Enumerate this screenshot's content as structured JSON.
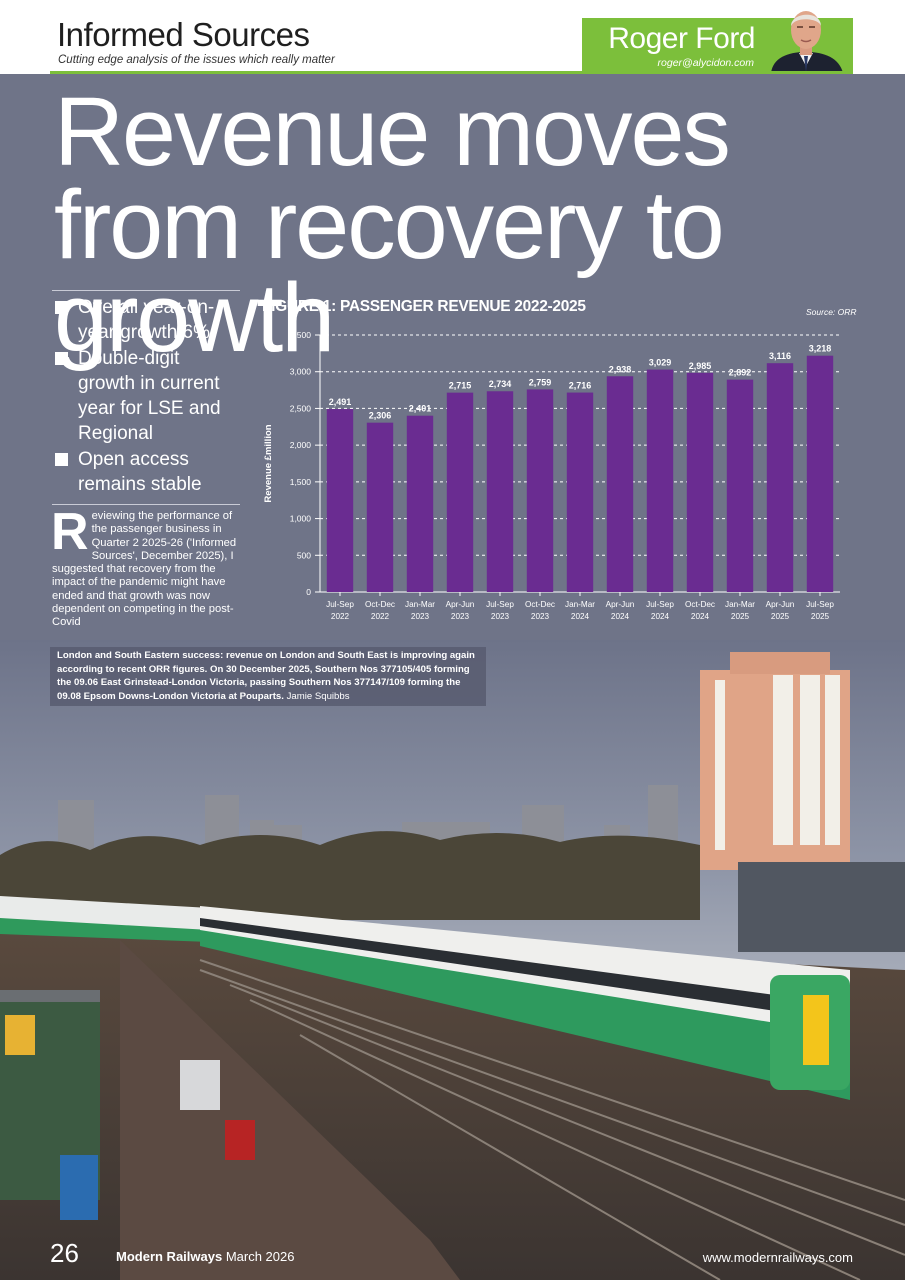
{
  "header": {
    "section_title": "Informed Sources",
    "tagline": "Cutting edge analysis of the issues which really matter",
    "author_name": "Roger Ford",
    "author_email": "roger@alycidon.com"
  },
  "headline": "Revenue moves from recovery to growth",
  "bullets": [
    "Overall year-on-year growth 6%",
    "Double-digit growth in current year for LSE and Regional",
    "Open access remains stable"
  ],
  "body": {
    "drop_cap": "R",
    "text": "eviewing the performance of the passenger business in Quarter 2 2025-26 ('Informed Sources', December 2025), I suggested that recovery from the impact of the pandemic might have ended and that growth was now dependent on competing in the post-Covid"
  },
  "figure": {
    "title": "FIGURE 1: PASSENGER REVENUE 2022-2025",
    "source": "Source: ORR"
  },
  "chart_data": {
    "type": "bar",
    "categories": [
      [
        "Jul-Sep",
        "2022"
      ],
      [
        "Oct-Dec",
        "2022"
      ],
      [
        "Jan-Mar",
        "2023"
      ],
      [
        "Apr-Jun",
        "2023"
      ],
      [
        "Jul-Sep",
        "2023"
      ],
      [
        "Oct-Dec",
        "2023"
      ],
      [
        "Jan-Mar",
        "2024"
      ],
      [
        "Apr-Jun",
        "2024"
      ],
      [
        "Jul-Sep",
        "2024"
      ],
      [
        "Oct-Dec",
        "2024"
      ],
      [
        "Jan-Mar",
        "2025"
      ],
      [
        "Apr-Jun",
        "2025"
      ],
      [
        "Jul-Sep",
        "2025"
      ]
    ],
    "values": [
      2491,
      2306,
      2401,
      2715,
      2734,
      2759,
      2716,
      2938,
      3029,
      2985,
      2892,
      3116,
      3218
    ],
    "value_labels": [
      "2,491",
      "2,306",
      "2,401",
      "2,715",
      "2,734",
      "2,759",
      "2,716",
      "2,938",
      "3,029",
      "2,985",
      "2,892",
      "3,116",
      "3,218"
    ],
    "ylabel": "Revenue £million",
    "ylim": [
      0,
      3500
    ],
    "yticks": [
      0,
      500,
      1000,
      1500,
      2000,
      2500,
      3000,
      3500
    ],
    "ytick_labels": [
      "0",
      "500",
      "1,000",
      "1,500",
      "2,000",
      "2,500",
      "3,000",
      "3,500"
    ],
    "grid": "dashed horizontal",
    "bar_color": "#6a2c91"
  },
  "photo": {
    "caption": "London and South Eastern success: revenue on London and South East is improving again according to recent ORR figures. On 30 December 2025, Southern Nos 377105/405 forming the 09.06 East Grinstead-London Victoria, passing Southern Nos 377147/109 forming the 09.08 Epsom Downs-London Victoria at Pouparts.",
    "credit": "Jamie Squibbs"
  },
  "footer": {
    "page_number": "26",
    "magazine": "Modern Railways",
    "issue": "March 2026",
    "url": "www.modernrailways.com"
  }
}
